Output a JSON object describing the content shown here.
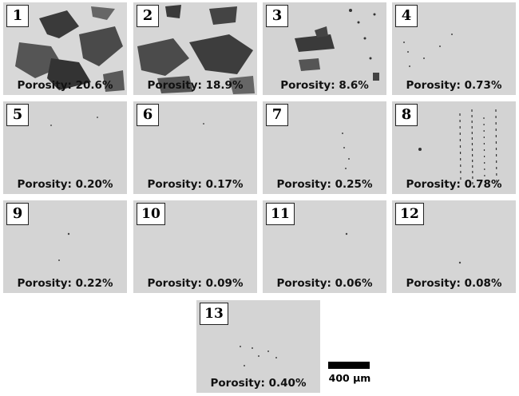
{
  "panels": [
    {
      "number": "1",
      "porosity": "Porosity: 20.6%"
    },
    {
      "number": "2",
      "porosity": "Porosity: 18.9%"
    },
    {
      "number": "3",
      "porosity": "Porosity: 8.6%"
    },
    {
      "number": "4",
      "porosity": "Porosity: 0.73%"
    },
    {
      "number": "5",
      "porosity": "Porosity: 0.20%"
    },
    {
      "number": "6",
      "porosity": "Porosity: 0.17%"
    },
    {
      "number": "7",
      "porosity": "Porosity: 0.25%"
    },
    {
      "number": "8",
      "porosity": "Porosity: 0.78%"
    },
    {
      "number": "9",
      "porosity": "Porosity: 0.22%"
    },
    {
      "number": "10",
      "porosity": "Porosity: 0.09%"
    },
    {
      "number": "11",
      "porosity": "Porosity: 0.06%"
    },
    {
      "number": "12",
      "porosity": "Porosity: 0.08%"
    },
    {
      "number": "13",
      "porosity": "Porosity: 0.40%"
    }
  ],
  "scale_bar": {
    "label": "400 µm"
  }
}
